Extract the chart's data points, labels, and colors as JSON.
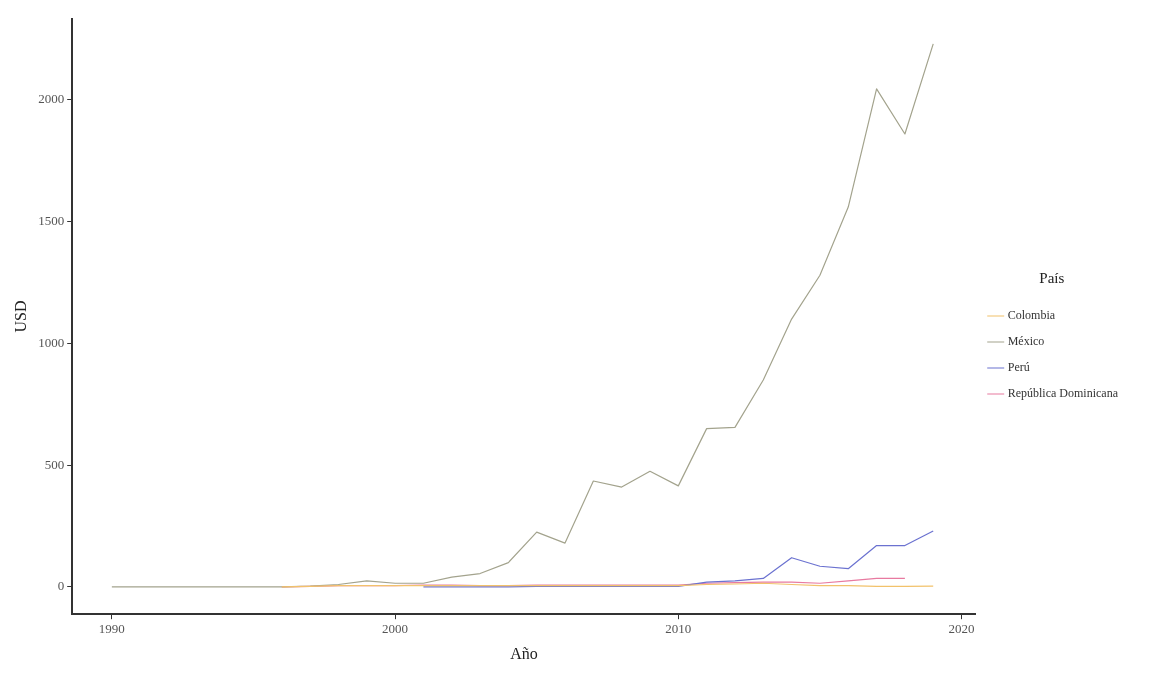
{
  "chart_data": {
    "type": "line",
    "xlabel": "Año",
    "ylabel": "USD",
    "legend_title": "País",
    "legend": "right",
    "grid": false,
    "marker": "none",
    "line_style": "solid",
    "xlim": [
      1988.6,
      2020.5
    ],
    "xticks": [
      1990,
      2000,
      2010,
      2020
    ],
    "ylim": [
      -112,
      2333
    ],
    "yticks": [
      0,
      500,
      1000,
      1500,
      2000
    ],
    "series": [
      {
        "name": "Colombia",
        "color": "#f2c26b",
        "x": [
          1996,
          1997,
          1998,
          1999,
          2000,
          2001,
          2002,
          2003,
          2004,
          2005,
          2006,
          2007,
          2008,
          2009,
          2010,
          2011,
          2012,
          2013,
          2014,
          2015,
          2016,
          2017,
          2018,
          2019
        ],
        "values": [
          0,
          2,
          5,
          5,
          5,
          5,
          5,
          5,
          5,
          5,
          5,
          5,
          5,
          5,
          5,
          10,
          12,
          15,
          10,
          5,
          5,
          2,
          2,
          3
        ]
      },
      {
        "name": "México",
        "color": "#a3a38d",
        "x": [
          1990,
          1991,
          1992,
          1993,
          1994,
          1995,
          1996,
          1997,
          1998,
          1999,
          2000,
          2001,
          2002,
          2003,
          2004,
          2005,
          2006,
          2007,
          2008,
          2009,
          2010,
          2011,
          2012,
          2013,
          2014,
          2015,
          2016,
          2017,
          2018,
          2019
        ],
        "values": [
          0,
          0,
          0,
          0,
          0,
          0,
          0,
          3,
          10,
          25,
          15,
          15,
          40,
          55,
          100,
          225,
          180,
          435,
          410,
          475,
          415,
          650,
          655,
          850,
          1100,
          1280,
          1560,
          2045,
          1860,
          2230
        ]
      },
      {
        "name": "Perú",
        "color": "#6b72d0",
        "x": [
          2001,
          2002,
          2003,
          2004,
          2005,
          2006,
          2007,
          2008,
          2009,
          2010,
          2011,
          2012,
          2013,
          2014,
          2015,
          2016,
          2017,
          2018,
          2019
        ],
        "values": [
          0,
          0,
          0,
          0,
          2,
          2,
          2,
          2,
          2,
          2,
          20,
          25,
          35,
          120,
          85,
          75,
          170,
          170,
          230
        ]
      },
      {
        "name": "República Dominicana",
        "color": "#e87aa0",
        "x": [
          1996,
          1997,
          1998,
          1999,
          2000,
          2001,
          2002,
          2003,
          2004,
          2005,
          2006,
          2007,
          2008,
          2009,
          2010,
          2011,
          2012,
          2013,
          2014,
          2015,
          2016,
          2017,
          2018
        ],
        "values": [
          0,
          2,
          5,
          5,
          5,
          8,
          8,
          5,
          5,
          8,
          8,
          8,
          8,
          8,
          8,
          15,
          18,
          20,
          20,
          15,
          25,
          35,
          35
        ]
      }
    ]
  }
}
